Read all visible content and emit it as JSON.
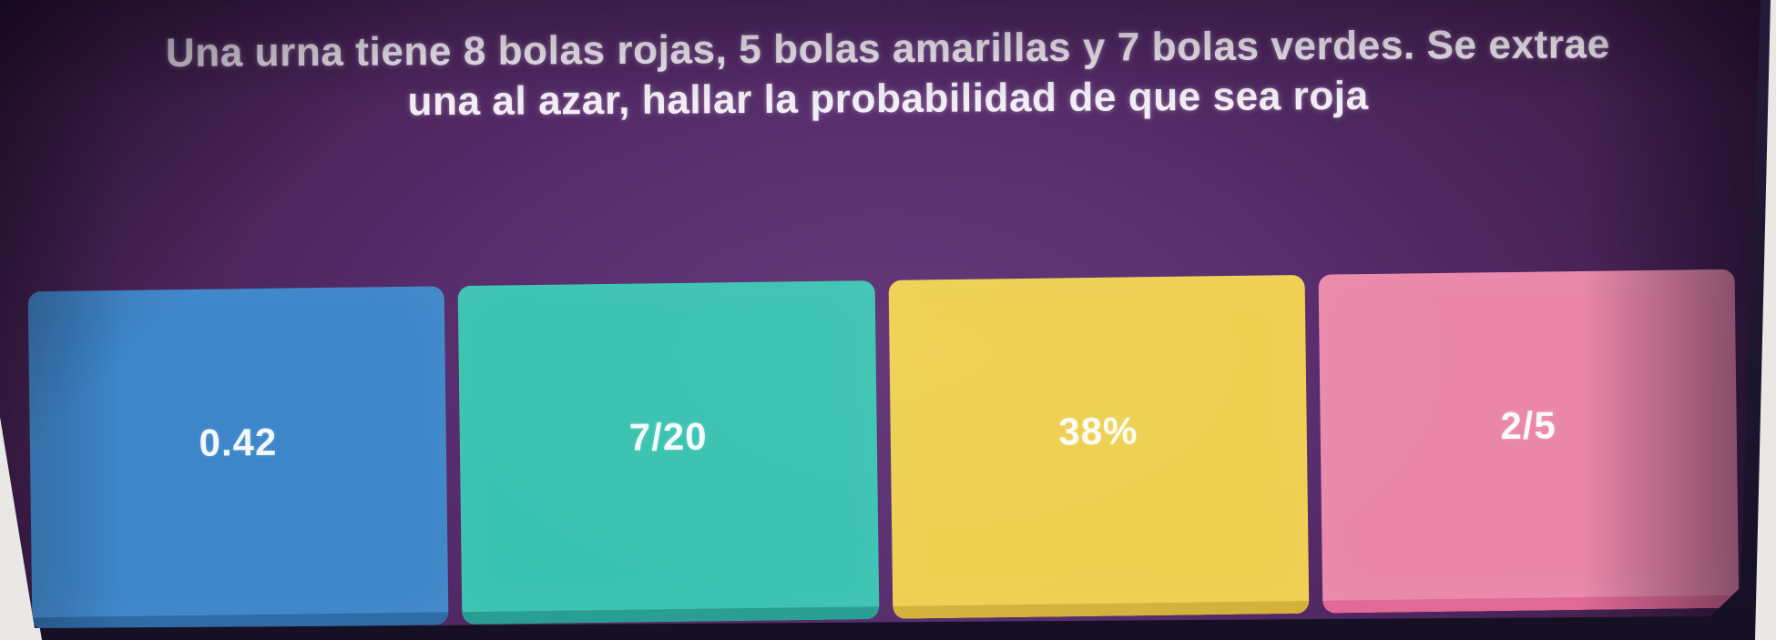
{
  "app": {
    "type": "quiz-question-screen"
  },
  "question": {
    "line1": "Una urna tiene 8 bolas rojas, 5 bolas amarillas y 7 bolas verdes. Se extrae",
    "line2": "una al azar, hallar la probabilidad de que sea roja",
    "full_text": "Una urna tiene 8 bolas rojas, 5 bolas amarillas y 7 bolas verdes. Se extrae una al azar, hallar la probabilidad de que sea roja"
  },
  "answers": [
    {
      "label": "0.42",
      "color": "#3d86ca",
      "edge_color": "#2f6ba5"
    },
    {
      "label": "7/20",
      "color": "#39c2b1",
      "edge_color": "#299e92"
    },
    {
      "label": "38%",
      "color": "#eecf4e",
      "edge_color": "#d3b23c"
    },
    {
      "label": "2/5",
      "color": "#ea87a9",
      "edge_color": "#e06995"
    }
  ],
  "theme": {
    "background_purple": "#572c6c",
    "background_dark_edge": "#301639",
    "question_text_color": "#f3edf6",
    "answer_text_color": "#ffffff",
    "bezel_color": "#1c1530",
    "photo_background": "#eae8e4"
  }
}
